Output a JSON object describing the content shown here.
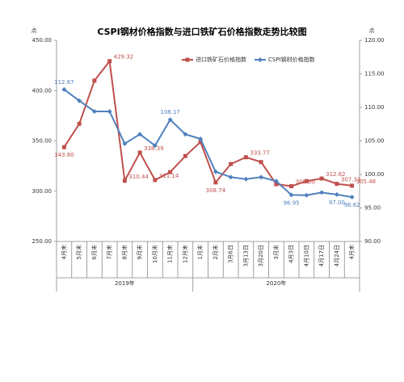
{
  "chart_data": {
    "type": "line",
    "title": "CSPI钢材价格指数与进口铁矿石价格指数走势比较图",
    "y_label": "点",
    "y2_label": "点",
    "categories": [
      "4月末",
      "5月末",
      "6月末",
      "7月末",
      "8月末",
      "9月末",
      "10月末",
      "11月末",
      "12月末",
      "1月末",
      "2月末",
      "3月6日",
      "3月13日",
      "3月20日",
      "3月末",
      "4月3日",
      "4月10日",
      "4月17日",
      "4月24日",
      "4月末"
    ],
    "groups": [
      {
        "label": "2019年",
        "count": 9
      },
      {
        "label": "2020年",
        "count": 11
      }
    ],
    "series": [
      {
        "name": "进口铁矿石价格指数",
        "color": "#c0504d",
        "marker": "square",
        "values": [
          343.8,
          367,
          410,
          429.32,
          310.44,
          338.39,
          311.14,
          319,
          335,
          349,
          308.74,
          327,
          333.77,
          329,
          307,
          305.0,
          310,
          312.62,
          307.33,
          305.48
        ],
        "value_labels": [
          "343.80",
          null,
          null,
          "429.32",
          "310.44",
          "338.39",
          "311.14",
          null,
          null,
          null,
          "308.74",
          null,
          "333.77",
          null,
          null,
          "305.00",
          null,
          "312.62",
          "307.33",
          "305.48"
        ]
      },
      {
        "name": "CSPI钢材价格指数",
        "color": "#4f81bd",
        "marker": "diamond",
        "axis": "y2",
        "values": [
          112.67,
          111,
          109.4,
          109.4,
          104.6,
          106,
          104.3,
          108.17,
          106,
          105.3,
          100.4,
          99.6,
          99.3,
          99.6,
          99.0,
          96.95,
          96.9,
          97.3,
          97.0,
          96.62
        ],
        "value_labels": [
          "112.67",
          null,
          null,
          null,
          null,
          null,
          null,
          "108.17",
          null,
          null,
          null,
          null,
          null,
          null,
          null,
          "96.95",
          null,
          null,
          "97.00",
          "96.62"
        ]
      }
    ],
    "ylim": [
      250,
      450
    ],
    "yticks": [
      {
        "value": 250,
        "label": "250.00"
      },
      {
        "value": 300,
        "label": "300.00"
      },
      {
        "value": 350,
        "label": "350.00"
      },
      {
        "value": 400,
        "label": "400.00"
      },
      {
        "value": 450,
        "label": "450.00"
      }
    ],
    "y2lim": [
      90,
      120
    ],
    "y2ticks": [
      {
        "value": 90,
        "label": "90.00"
      },
      {
        "value": 95,
        "label": "95.00"
      },
      {
        "value": 100,
        "label": "100.00"
      },
      {
        "value": 105,
        "label": "105.00"
      },
      {
        "value": 110,
        "label": "110.00"
      },
      {
        "value": 115,
        "label": "115.00"
      },
      {
        "value": 120,
        "label": "120.00"
      }
    ],
    "legend": "top",
    "grid": false
  }
}
